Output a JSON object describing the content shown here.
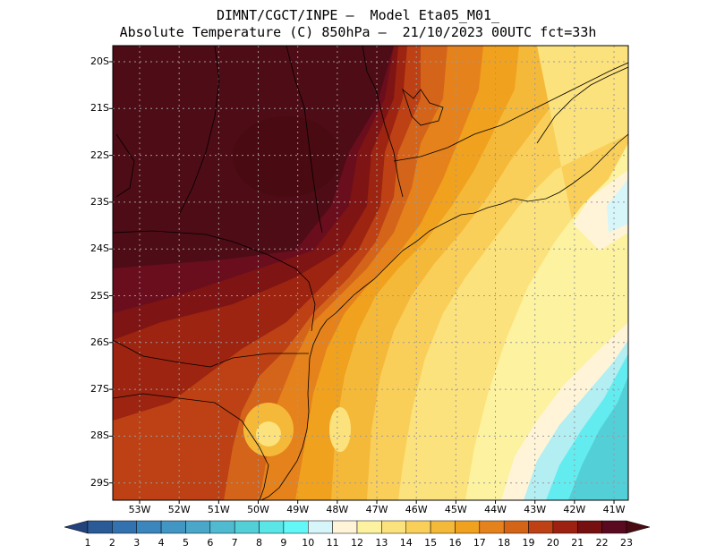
{
  "title": {
    "line1": "DIMNT/CGCT/INPE –  Model Eta05_M01_",
    "line2": "Absolute Temperature (C) 850hPa –  21/10/2023 00UTC fct=33h"
  },
  "map": {
    "lat_labels": [
      "20S",
      "21S",
      "22S",
      "23S",
      "24S",
      "25S",
      "26S",
      "27S",
      "28S",
      "29S"
    ],
    "lon_labels": [
      "53W",
      "52W",
      "51W",
      "50W",
      "49W",
      "48W",
      "47W",
      "46W",
      "45W",
      "44W",
      "43W",
      "42W",
      "41W"
    ],
    "grid": "dotted"
  },
  "colorbar": {
    "labels": [
      "1",
      "2",
      "3",
      "4",
      "5",
      "6",
      "7",
      "8",
      "9",
      "10",
      "11",
      "12",
      "13",
      "14",
      "15",
      "16",
      "17",
      "18",
      "19",
      "20",
      "21",
      "22",
      "23"
    ],
    "colors": [
      "#23437d",
      "#2a5b97",
      "#3272ae",
      "#3a86bd",
      "#4296c3",
      "#4aa7c9",
      "#4fbad0",
      "#53cfd8",
      "#5ae6e6",
      "#62f8f8",
      "#d6f6fa",
      "#fff4d8",
      "#fdf2a0",
      "#fce27c",
      "#f9cf5a",
      "#f5b93a",
      "#f0a11e",
      "#e5821b",
      "#d46418",
      "#bd4114",
      "#9c2110",
      "#761010",
      "#5a0a20",
      "#4a0a12"
    ]
  }
}
